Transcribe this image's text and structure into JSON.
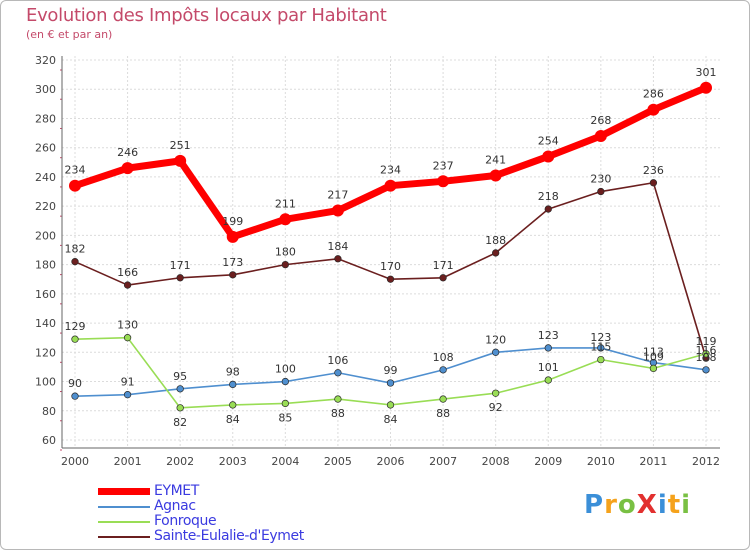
{
  "chart_data": {
    "type": "line",
    "title": "Evolution des Impôts locaux par Habitant",
    "subtitle": "(en € et par an)",
    "xlabel": "",
    "ylabel": "",
    "x": [
      "2000",
      "2001",
      "2002",
      "2003",
      "2004",
      "2005",
      "2006",
      "2007",
      "2008",
      "2009",
      "2010",
      "2011",
      "2012"
    ],
    "ylim": [
      60,
      320
    ],
    "yticks": [
      "60",
      "80",
      "100",
      "120",
      "140",
      "160",
      "180",
      "200",
      "220",
      "240",
      "260",
      "280",
      "300",
      "320"
    ],
    "grid": true,
    "legend_position": "bottom-left",
    "series": [
      {
        "name": "EYMET",
        "color": "#ff0000",
        "values": [
          234,
          246,
          251,
          199,
          211,
          217,
          234,
          237,
          241,
          254,
          268,
          286,
          301
        ],
        "labels": [
          "234",
          "246",
          "251",
          "199",
          "211",
          "217",
          "234",
          "237",
          "241",
          "254",
          "268",
          "286",
          "301"
        ]
      },
      {
        "name": "Agnac",
        "color": "#4f8fcf",
        "values": [
          90,
          91,
          95,
          98,
          100,
          106,
          99,
          108,
          120,
          123,
          123,
          113,
          108
        ],
        "labels": [
          "90",
          "91",
          "95",
          "98",
          "100",
          "106",
          "99",
          "108",
          "120",
          "123",
          "123",
          "113",
          "108"
        ]
      },
      {
        "name": "Fonroque",
        "color": "#99dd55",
        "values": [
          129,
          130,
          82,
          84,
          85,
          88,
          84,
          88,
          92,
          101,
          115,
          109,
          119
        ],
        "labels": [
          "129",
          "130",
          "82",
          "84",
          "85",
          "88",
          "84",
          "88",
          "92",
          "101",
          "115",
          "109",
          "119"
        ]
      },
      {
        "name": "Sainte-Eulalie-d'Eymet",
        "color": "#6b1f1f",
        "values": [
          182,
          166,
          171,
          173,
          180,
          184,
          170,
          171,
          188,
          218,
          230,
          236,
          116
        ],
        "labels": [
          "182",
          "166",
          "171",
          "173",
          "180",
          "184",
          "170",
          "171",
          "188",
          "218",
          "230",
          "236",
          "116"
        ]
      }
    ]
  },
  "legend": {
    "items": [
      {
        "label": "EYMET",
        "color": "#ff0000"
      },
      {
        "label": "Agnac",
        "color": "#4f8fcf"
      },
      {
        "label": "Fonroque",
        "color": "#99dd55"
      },
      {
        "label": "Sainte-Eulalie-d'Eymet",
        "color": "#6b1f1f"
      }
    ]
  },
  "brand": {
    "text": "ProXiti",
    "letters": [
      {
        "ch": "P",
        "color": "#3b8fd8"
      },
      {
        "ch": "r",
        "color": "#f5a21b"
      },
      {
        "ch": "o",
        "color": "#79c043"
      },
      {
        "ch": "X",
        "color": "#e2302f"
      },
      {
        "ch": "i",
        "color": "#3b8fd8"
      },
      {
        "ch": "t",
        "color": "#f5a21b"
      },
      {
        "ch": "i",
        "color": "#79c043"
      }
    ]
  }
}
